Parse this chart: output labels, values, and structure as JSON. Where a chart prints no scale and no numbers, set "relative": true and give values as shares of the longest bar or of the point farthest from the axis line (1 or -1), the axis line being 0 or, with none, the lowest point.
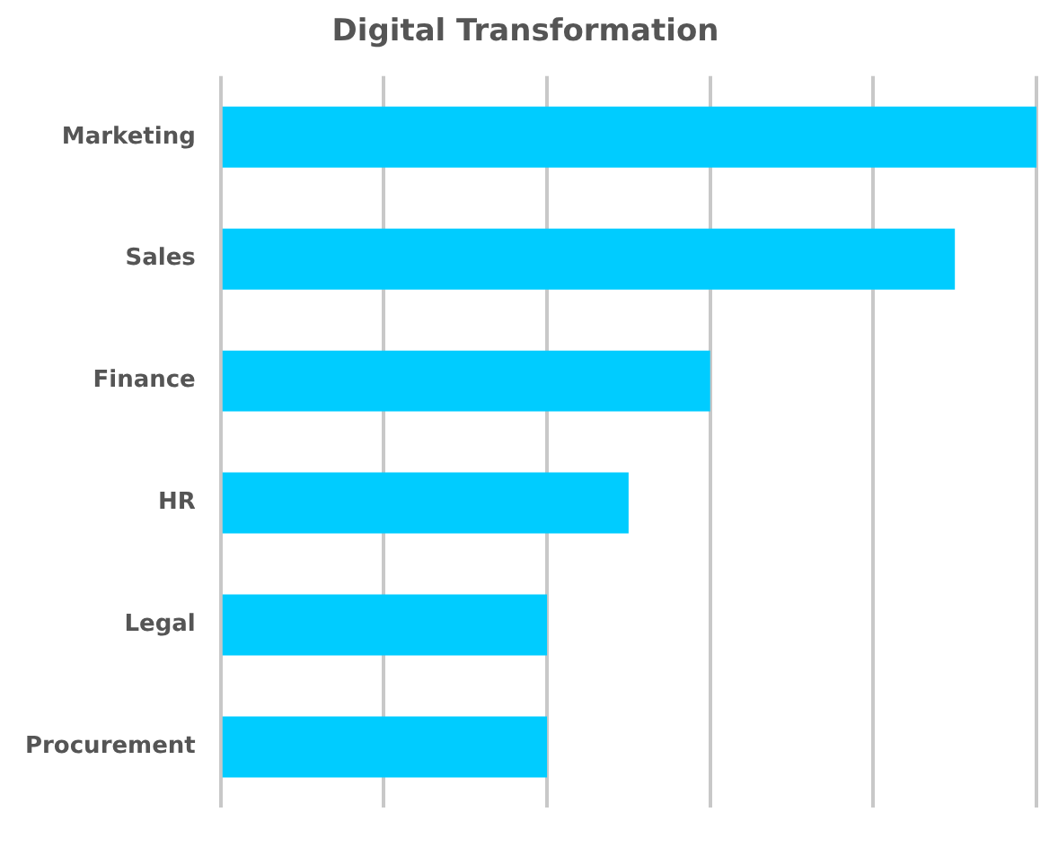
{
  "chart_data": {
    "type": "bar",
    "title": "Digital Transformation",
    "orientation": "horizontal",
    "relative": true,
    "categories": [
      "Marketing",
      "Sales",
      "Finance",
      "HR",
      "Legal",
      "Procurement"
    ],
    "values": [
      1,
      0.9,
      0.6,
      0.5,
      0.4,
      0.4
    ],
    "color": "#00ccff",
    "grid": "x",
    "legend": false
  }
}
